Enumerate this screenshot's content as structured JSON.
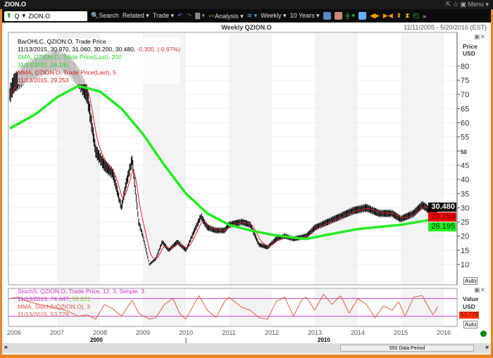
{
  "window": {
    "title": "ZION.O",
    "menu": "Menu"
  },
  "toolbar": {
    "symbol": "ZION.O",
    "prefix": "Q",
    "search": "Search",
    "related": "Related",
    "trade": "Trade",
    "analysis": "Analysis",
    "interval": "Weekly",
    "range": "10 Years"
  },
  "header": {
    "title": "Weekly QZION.O",
    "date_range": "11/11/2005 - 5/20/2016 (EST)"
  },
  "legend": {
    "bar_title": "BarOHLC, QZION.O, Trade Price",
    "bar_values": "11/13/2015, 30.970, 31.060, 30.200, 30.480, ",
    "bar_change": "-0.300, (-0.97%)",
    "sma_title": "SMA, QZION.O, Trade Price(Last),  200",
    "sma_values": "11/13/2015, 26.195",
    "mma_title": "MMA, QZION.O, Trade Price(Last),  5",
    "mma_values": "11/13/2015, 29.253",
    "stoch_title": "StochS, QZION.O, Trade Price,  12, 3, Simple, 3",
    "stoch_values": "11/13/2015, 74.647, ",
    "stoch_d": "59.221",
    "smma_title": "MMA, StochS(QZION.O),  3",
    "smma_values": "11/13/2015, 53.779"
  },
  "axis": {
    "price_label": "Price",
    "unit": "USD",
    "value_label": "Value",
    "auto": "Auto",
    "price_badge": "30.480",
    "mma_badge": "29.253",
    "sma_badge": "26.195",
    "stoch_badge": "53.779"
  },
  "footer": {
    "decade_labels": [
      "2000",
      "2010"
    ],
    "period": "550 Data Period"
  },
  "colors": {
    "sma": "#22ee22",
    "mma": "#dd2222",
    "stoch": "#cc3399",
    "stoch_line": "#e06040",
    "bars": "#000000"
  },
  "chart_data": {
    "type": "bar",
    "scale": "linear",
    "ylim": [
      5,
      85
    ],
    "yticks": [
      10,
      15,
      20,
      25,
      30,
      35,
      40,
      45,
      50,
      55,
      60,
      65,
      70,
      75,
      80
    ],
    "xticks": [
      "2006",
      "2007",
      "2008",
      "2009",
      "2010",
      "2011",
      "2012",
      "2013",
      "2014",
      "2015",
      "2016"
    ],
    "close": [
      [
        2005.9,
        70
      ],
      [
        2006.0,
        74
      ],
      [
        2006.3,
        78
      ],
      [
        2006.6,
        80
      ],
      [
        2007.0,
        82
      ],
      [
        2007.3,
        80
      ],
      [
        2007.5,
        76
      ],
      [
        2007.7,
        70
      ],
      [
        2007.9,
        50
      ],
      [
        2008.1,
        45
      ],
      [
        2008.3,
        42
      ],
      [
        2008.5,
        30
      ],
      [
        2008.6,
        38
      ],
      [
        2008.75,
        47
      ],
      [
        2008.9,
        25
      ],
      [
        2009.0,
        20
      ],
      [
        2009.15,
        10
      ],
      [
        2009.3,
        12
      ],
      [
        2009.45,
        18
      ],
      [
        2009.6,
        15
      ],
      [
        2009.8,
        18
      ],
      [
        2010.0,
        15
      ],
      [
        2010.2,
        22
      ],
      [
        2010.35,
        27
      ],
      [
        2010.5,
        23
      ],
      [
        2010.7,
        22
      ],
      [
        2010.9,
        22
      ],
      [
        2011.0,
        24
      ],
      [
        2011.3,
        25
      ],
      [
        2011.5,
        24
      ],
      [
        2011.7,
        17
      ],
      [
        2011.9,
        16
      ],
      [
        2012.1,
        19
      ],
      [
        2012.3,
        20
      ],
      [
        2012.5,
        19
      ],
      [
        2012.8,
        20
      ],
      [
        2013.0,
        23
      ],
      [
        2013.3,
        25
      ],
      [
        2013.6,
        27
      ],
      [
        2013.9,
        29
      ],
      [
        2014.2,
        30
      ],
      [
        2014.5,
        28
      ],
      [
        2014.8,
        28
      ],
      [
        2015.0,
        26
      ],
      [
        2015.3,
        28
      ],
      [
        2015.5,
        31
      ],
      [
        2015.6,
        30
      ],
      [
        2015.75,
        27
      ],
      [
        2015.87,
        30.48
      ]
    ],
    "sma200": [
      [
        2005.9,
        58
      ],
      [
        2006.5,
        63
      ],
      [
        2007.0,
        69
      ],
      [
        2007.5,
        73
      ],
      [
        2008.0,
        71
      ],
      [
        2008.5,
        65
      ],
      [
        2009.0,
        56
      ],
      [
        2009.5,
        45
      ],
      [
        2010.0,
        35
      ],
      [
        2010.5,
        28
      ],
      [
        2011.0,
        24
      ],
      [
        2011.5,
        22
      ],
      [
        2012.0,
        20.5
      ],
      [
        2012.5,
        19.5
      ],
      [
        2012.8,
        19
      ],
      [
        2013.3,
        20.5
      ],
      [
        2014.0,
        22.5
      ],
      [
        2015.0,
        24
      ],
      [
        2015.87,
        26.2
      ]
    ],
    "stoch": {
      "ylim": [
        0,
        100
      ],
      "levels": [
        20,
        80
      ],
      "values": [
        [
          2005.9,
          80
        ],
        [
          2006.1,
          85
        ],
        [
          2006.3,
          70
        ],
        [
          2006.6,
          60
        ],
        [
          2006.9,
          50
        ],
        [
          2007.2,
          40
        ],
        [
          2007.5,
          20
        ],
        [
          2007.7,
          25
        ],
        [
          2007.9,
          10
        ],
        [
          2008.1,
          60
        ],
        [
          2008.3,
          45
        ],
        [
          2008.5,
          20
        ],
        [
          2008.75,
          75
        ],
        [
          2008.9,
          30
        ],
        [
          2009.15,
          10
        ],
        [
          2009.3,
          15
        ],
        [
          2009.5,
          60
        ],
        [
          2009.7,
          80
        ],
        [
          2009.85,
          30
        ],
        [
          2010.0,
          10
        ],
        [
          2010.3,
          90
        ],
        [
          2010.5,
          40
        ],
        [
          2010.7,
          15
        ],
        [
          2010.9,
          70
        ],
        [
          2011.0,
          85
        ],
        [
          2011.3,
          50
        ],
        [
          2011.5,
          40
        ],
        [
          2011.7,
          15
        ],
        [
          2011.9,
          10
        ],
        [
          2012.1,
          70
        ],
        [
          2012.3,
          85
        ],
        [
          2012.5,
          20
        ],
        [
          2012.7,
          75
        ],
        [
          2012.8,
          85
        ],
        [
          2013.0,
          40
        ],
        [
          2013.2,
          95
        ],
        [
          2013.4,
          60
        ],
        [
          2013.6,
          90
        ],
        [
          2013.8,
          30
        ],
        [
          2014.0,
          80
        ],
        [
          2014.2,
          60
        ],
        [
          2014.4,
          15
        ],
        [
          2014.6,
          55
        ],
        [
          2014.8,
          40
        ],
        [
          2014.95,
          70
        ],
        [
          2015.1,
          20
        ],
        [
          2015.3,
          85
        ],
        [
          2015.5,
          90
        ],
        [
          2015.65,
          50
        ],
        [
          2015.75,
          25
        ],
        [
          2015.87,
          53.8
        ]
      ]
    }
  }
}
